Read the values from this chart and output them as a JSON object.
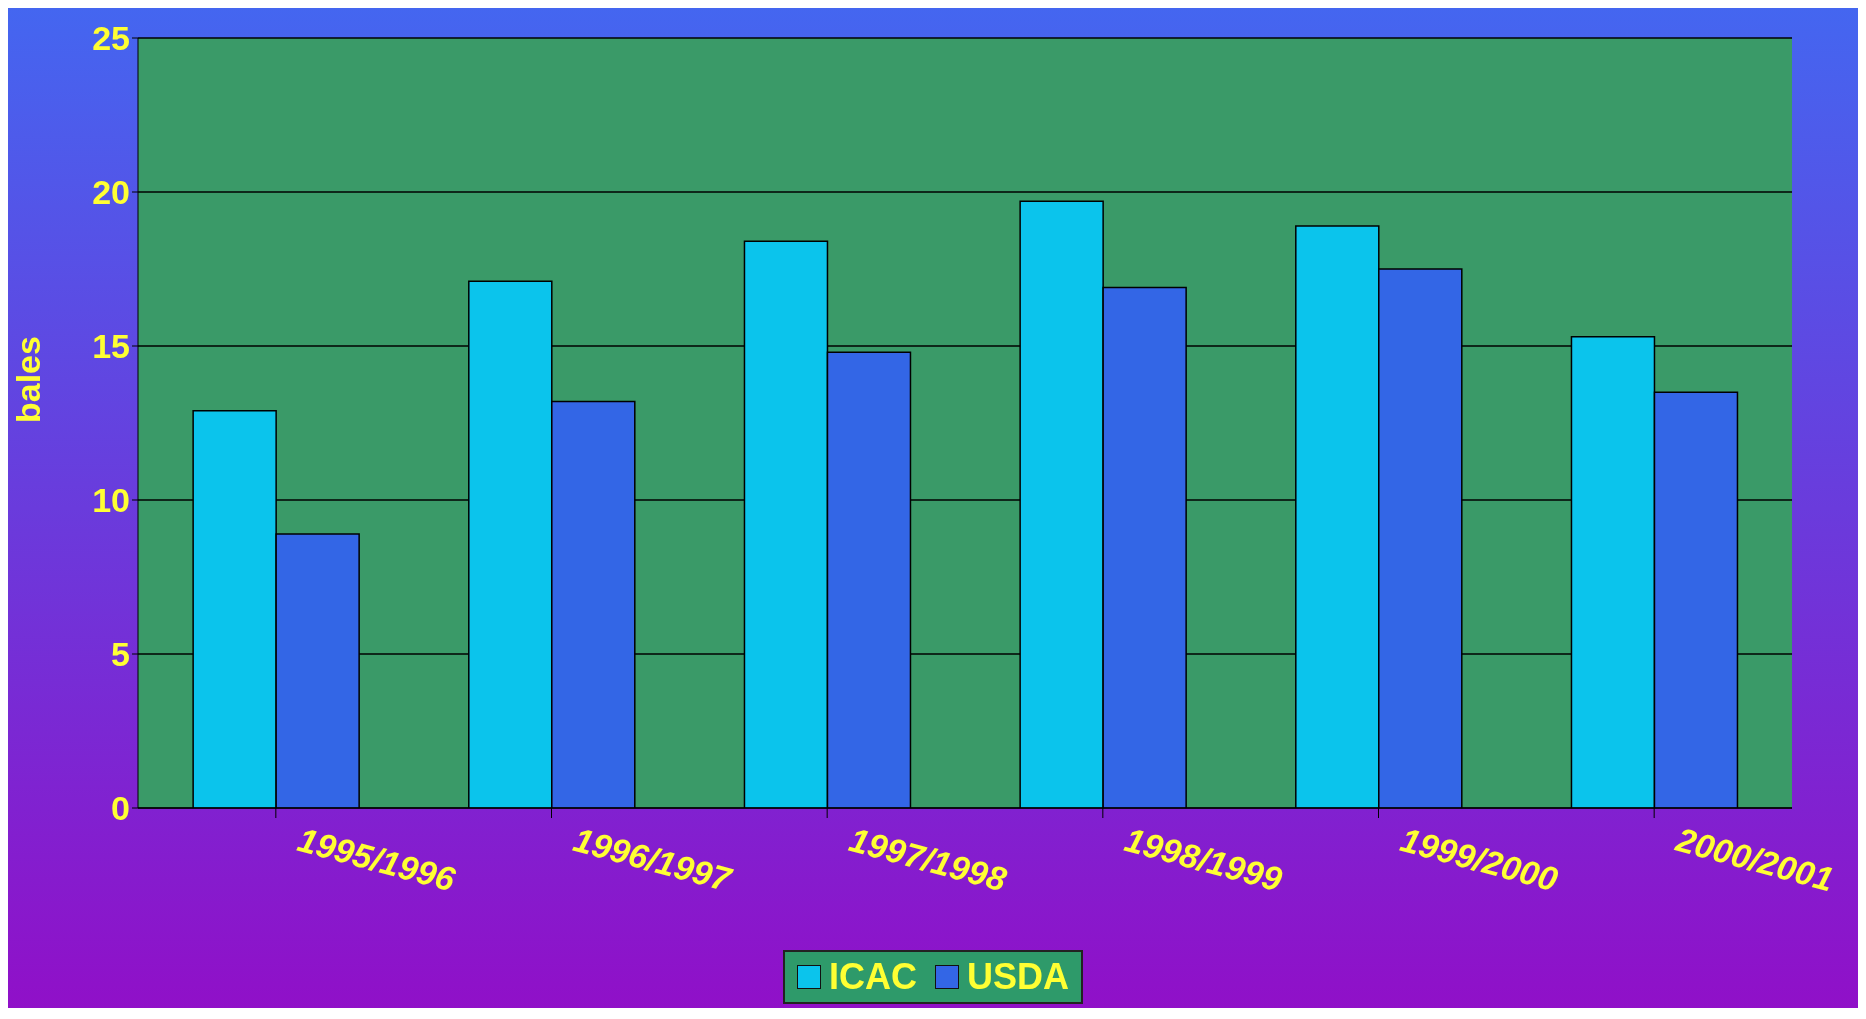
{
  "chart_data": {
    "type": "bar",
    "ylabel": "bales",
    "categories": [
      "1995/1996",
      "1996/1997",
      "1997/1998",
      "1998/1999",
      "1999/2000",
      "2000/2001"
    ],
    "series": [
      {
        "name": "ICAC",
        "color": "#0bc4ec",
        "values": [
          12.9,
          17.1,
          18.4,
          19.7,
          18.9,
          15.3
        ]
      },
      {
        "name": "USDA",
        "color": "#3366e6",
        "values": [
          8.9,
          13.2,
          14.8,
          16.9,
          17.5,
          13.5
        ]
      }
    ],
    "ylim": [
      0,
      25
    ],
    "yticks": [
      0,
      5,
      10,
      15,
      20,
      25
    ],
    "grid": "y",
    "legend": "bottom"
  }
}
